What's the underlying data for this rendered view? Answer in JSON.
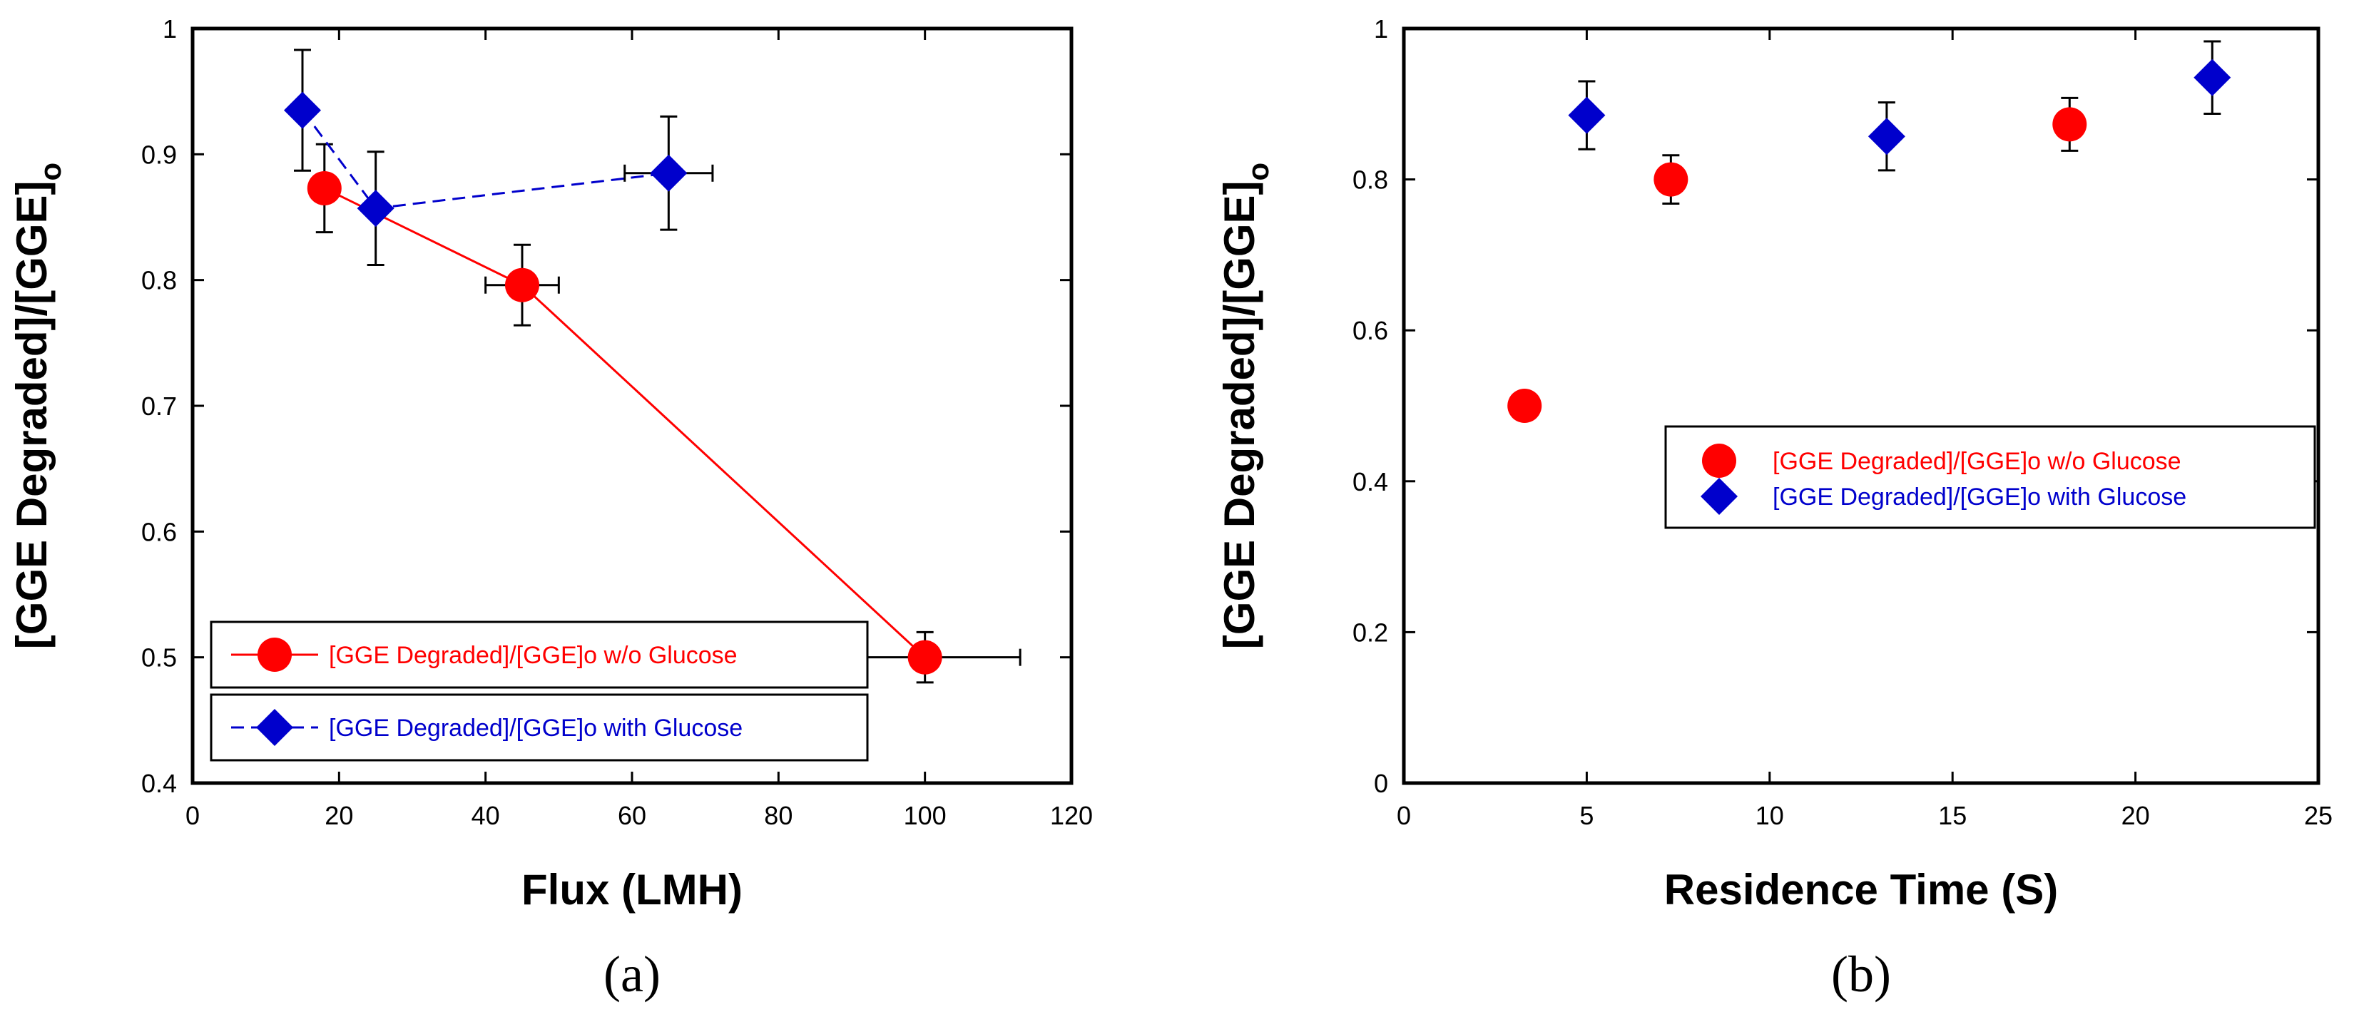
{
  "chart_data": [
    {
      "panel": "a",
      "panel_label": "(a)",
      "type": "scatter",
      "connected": true,
      "xlabel": "Flux (LMH)",
      "ylabel": "[GGE Degraded]/[GGE]",
      "ylabel_sub": "o",
      "xlim": [
        0,
        120
      ],
      "ylim": [
        0.4,
        1.0
      ],
      "xticks": [
        "0",
        "20",
        "40",
        "60",
        "80",
        "100",
        "120"
      ],
      "yticks": [
        "0.4",
        "0.5",
        "0.6",
        "0.7",
        "0.8",
        "0.9",
        "1"
      ],
      "series": [
        {
          "name": "[GGE Degraded]/[GGE]o  w/o Glucose",
          "color": "#ff0000",
          "marker": "circle",
          "line": "solid",
          "points": [
            {
              "x": 18,
              "y": 0.873,
              "yerr": 0.035,
              "xerr": 0
            },
            {
              "x": 45,
              "y": 0.796,
              "yerr": 0.032,
              "xerr": 5
            },
            {
              "x": 100,
              "y": 0.5,
              "yerr": 0.02,
              "xerr": 13
            }
          ]
        },
        {
          "name": "[GGE Degraded]/[GGE]o with Glucose",
          "color": "#0000cc",
          "marker": "diamond",
          "line": "dashed",
          "points": [
            {
              "x": 15,
              "y": 0.935,
              "yerr": 0.048,
              "xerr": 0
            },
            {
              "x": 25,
              "y": 0.857,
              "yerr": 0.045,
              "xerr": 0
            },
            {
              "x": 65,
              "y": 0.885,
              "yerr": 0.045,
              "xerr": 6
            }
          ]
        }
      ],
      "legend_position": "bottom-left"
    },
    {
      "panel": "b",
      "panel_label": "(b)",
      "type": "scatter",
      "connected": false,
      "xlabel": "Residence Time (S)",
      "ylabel": "[GGE Degraded]/[GGE]",
      "ylabel_sub": "o",
      "xlim": [
        0,
        25
      ],
      "ylim": [
        0,
        1.0
      ],
      "xticks": [
        "0",
        "5",
        "10",
        "15",
        "20",
        "25"
      ],
      "yticks": [
        "0",
        "0.2",
        "0.4",
        "0.6",
        "0.8",
        "1"
      ],
      "series": [
        {
          "name": "[GGE Degraded]/[GGE]o  w/o Glucose",
          "color": "#ff0000",
          "marker": "circle",
          "points": [
            {
              "x": 3.3,
              "y": 0.5,
              "yerr": 0
            },
            {
              "x": 7.3,
              "y": 0.8,
              "yerr": 0.032
            },
            {
              "x": 18.2,
              "y": 0.873,
              "yerr": 0.035
            }
          ]
        },
        {
          "name": "[GGE Degraded]/[GGE]o with Glucose",
          "color": "#0000cc",
          "marker": "diamond",
          "points": [
            {
              "x": 5.0,
              "y": 0.885,
              "yerr": 0.045
            },
            {
              "x": 13.2,
              "y": 0.857,
              "yerr": 0.045
            },
            {
              "x": 22.1,
              "y": 0.935,
              "yerr": 0.048
            }
          ]
        }
      ],
      "legend_position": "center-right"
    }
  ]
}
